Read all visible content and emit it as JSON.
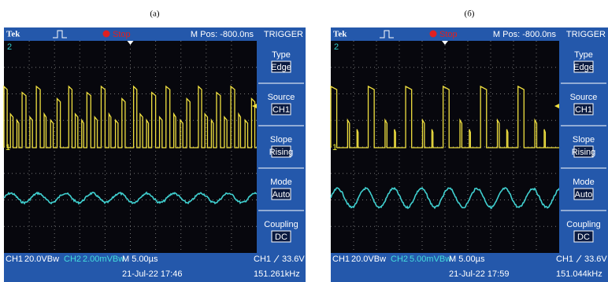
{
  "panels": [
    {
      "label": "(a)",
      "header": {
        "brand": "Tek",
        "state": "Stop",
        "position": "M Pos: -800.0ns",
        "menu_title": "TRIGGER"
      },
      "markers": {
        "ch2": "2",
        "ch1": "1"
      },
      "menu": [
        {
          "name": "Type",
          "value": "Edge"
        },
        {
          "name": "Source",
          "value": "CH1"
        },
        {
          "name": "Slope",
          "value": "Rising"
        },
        {
          "name": "Mode",
          "value": "Auto"
        },
        {
          "name": "Coupling",
          "value": "DC"
        }
      ],
      "footer": {
        "ch1": "CH1",
        "ch1_scale": "20.0VBw",
        "ch2": "CH2",
        "ch2_scale": "2.00mVBw",
        "timebase": "M 5.00µs",
        "trig_source": "CH1",
        "trig_level": "33.6V",
        "date": "21-Jul-22 17:46",
        "freq": "151.261kHz"
      }
    },
    {
      "label": "(б)",
      "header": {
        "brand": "Tek",
        "state": "Stop",
        "position": "M Pos: -800.0ns",
        "menu_title": "TRIGGER"
      },
      "markers": {
        "ch2": "2",
        "ch1": "1"
      },
      "menu": [
        {
          "name": "Type",
          "value": "Edge"
        },
        {
          "name": "Source",
          "value": "CH1"
        },
        {
          "name": "Slope",
          "value": "Rising"
        },
        {
          "name": "Mode",
          "value": "Auto"
        },
        {
          "name": "Coupling",
          "value": "DC"
        }
      ],
      "footer": {
        "ch1": "CH1",
        "ch1_scale": "20.0VBw",
        "ch2": "CH2",
        "ch2_scale": "5.00mVBw",
        "timebase": "M 5.00µs",
        "trig_source": "CH1",
        "trig_level": "33.6V",
        "date": "21-Jul-22 17:59",
        "freq": "151.044kHz"
      }
    }
  ]
}
